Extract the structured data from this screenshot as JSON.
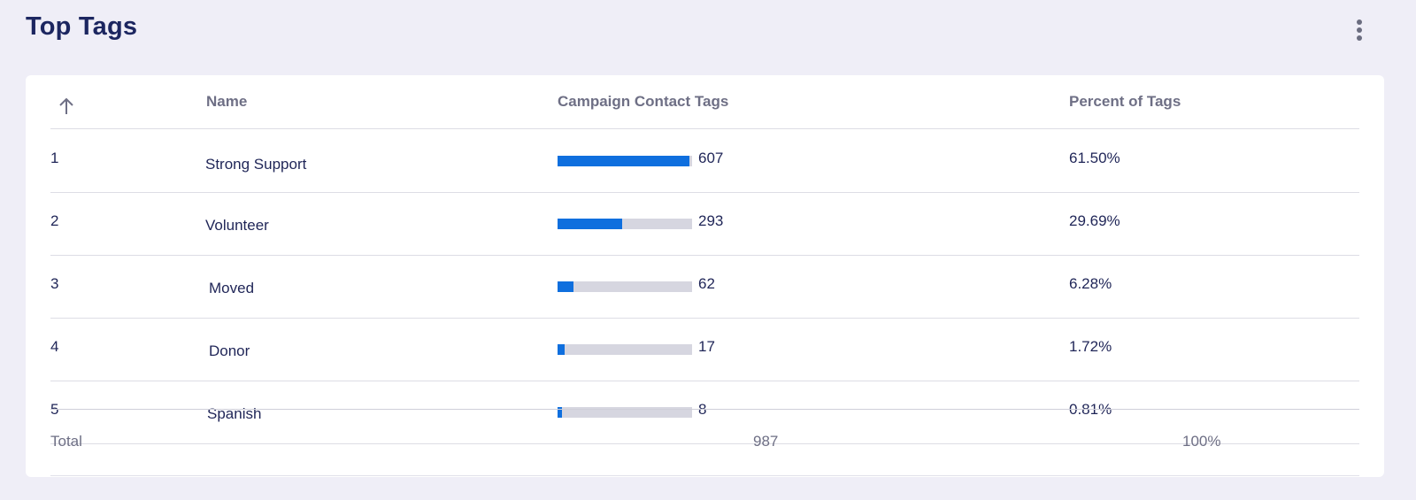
{
  "header": {
    "title": "Top Tags",
    "menu_icon": "kebab-menu-icon"
  },
  "table": {
    "sort_icon": "arrow-up-icon",
    "columns": {
      "name": "Name",
      "count": "Campaign Contact Tags",
      "percent": "Percent of Tags"
    },
    "rows": [
      {
        "rank": "1",
        "name": "Strong Support",
        "count": "607",
        "percent": "61.50%",
        "bar_fraction": 0.98
      },
      {
        "rank": "2",
        "name": "Volunteer",
        "count": "293",
        "percent": "29.69%",
        "bar_fraction": 0.48
      },
      {
        "rank": "3",
        "name": "Moved",
        "count": "62",
        "percent": "6.28%",
        "bar_fraction": 0.12
      },
      {
        "rank": "4",
        "name": "Donor",
        "count": "17",
        "percent": "1.72%",
        "bar_fraction": 0.05
      },
      {
        "rank": "5",
        "name": "Spanish",
        "count": "8",
        "percent": "0.81%",
        "bar_fraction": 0.03
      }
    ],
    "total": {
      "label": "Total",
      "count": "987",
      "percent": "100%"
    }
  },
  "colors": {
    "bar_fill": "#0f6fde",
    "bar_track": "#d6d6e0",
    "title": "#1c2660",
    "background": "#efeef7"
  }
}
